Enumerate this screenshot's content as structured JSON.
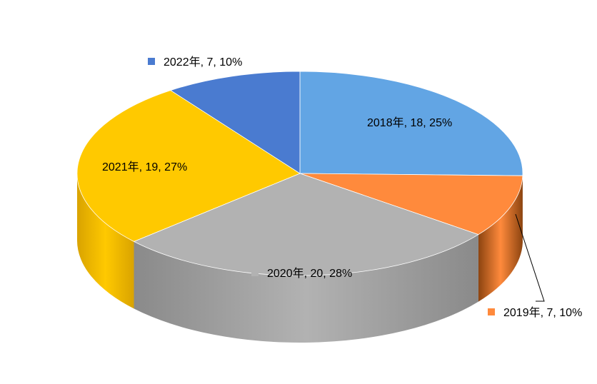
{
  "chart_data": {
    "type": "pie",
    "style": "3d",
    "series": [
      {
        "values": [
          18,
          7,
          20,
          19,
          7
        ],
        "labels": [
          "2018年, 18, 25%",
          "2019年, 7, 10%",
          "2020年, 20, 28%",
          "2021年, 19, 27%",
          "2022年, 7, 10%"
        ]
      }
    ],
    "categories": [
      "2018年",
      "2019年",
      "2020年",
      "2021年",
      "2022年"
    ],
    "percentages": [
      25,
      10,
      28,
      27,
      10
    ],
    "colors": [
      "#62A5E4",
      "#FF8A3C",
      "#B2B2B2",
      "#FFC900",
      "#4A7BD0"
    ],
    "side_colors": [
      "#3C6FA3",
      "#8C4410",
      "#8A8A8A",
      "#D9A300",
      "#2F5597"
    ]
  }
}
